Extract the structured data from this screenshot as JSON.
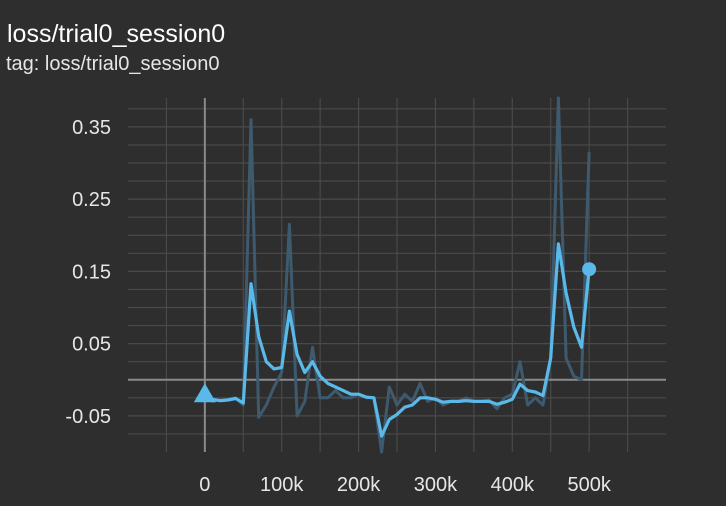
{
  "header": {
    "title": "loss/trial0_session0",
    "tag": "tag: loss/trial0_session0"
  },
  "colors": {
    "background": "#2e2e2e",
    "grid": "#4a4a4a",
    "axis": "#8a8a8a",
    "series": "#5ab9e8",
    "raw_series": "#3e5a6e"
  },
  "chart_data": {
    "type": "line",
    "title": "",
    "xlabel": "",
    "ylabel": "",
    "xlim": [
      -100000,
      600000
    ],
    "ylim": [
      -0.1,
      0.39
    ],
    "grid": true,
    "x_ticks": [
      {
        "value": 0,
        "label": "0"
      },
      {
        "value": 100000,
        "label": "100k"
      },
      {
        "value": 200000,
        "label": "200k"
      },
      {
        "value": 300000,
        "label": "300k"
      },
      {
        "value": 400000,
        "label": "400k"
      },
      {
        "value": 500000,
        "label": "500k"
      }
    ],
    "y_ticks": [
      {
        "value": 0.35,
        "label": "0.35"
      },
      {
        "value": 0.25,
        "label": "0.25"
      },
      {
        "value": 0.15,
        "label": "0.15"
      },
      {
        "value": 0.05,
        "label": "0.05"
      },
      {
        "value": -0.05,
        "label": "-0.05"
      }
    ],
    "series": [
      {
        "style": "raw",
        "x": [
          0,
          10000,
          20000,
          30000,
          40000,
          50000,
          60000,
          70000,
          80000,
          90000,
          100000,
          110000,
          120000,
          130000,
          140000,
          150000,
          160000,
          170000,
          180000,
          190000,
          200000,
          210000,
          220000,
          230000,
          240000,
          250000,
          260000,
          270000,
          280000,
          290000,
          300000,
          310000,
          320000,
          330000,
          340000,
          350000,
          360000,
          370000,
          380000,
          390000,
          400000,
          410000,
          420000,
          430000,
          440000,
          450000,
          460000,
          470000,
          480000,
          490000,
          500000
        ],
        "y": [
          -0.02,
          -0.03,
          -0.028,
          -0.027,
          -0.025,
          -0.035,
          0.36,
          -0.052,
          -0.035,
          -0.01,
          0.01,
          0.215,
          -0.05,
          -0.03,
          0.045,
          -0.025,
          -0.025,
          -0.015,
          -0.025,
          -0.025,
          -0.02,
          -0.025,
          -0.025,
          -0.1,
          -0.01,
          -0.035,
          -0.02,
          -0.03,
          -0.005,
          -0.03,
          -0.025,
          -0.035,
          -0.03,
          -0.03,
          -0.025,
          -0.03,
          -0.03,
          -0.028,
          -0.04,
          -0.025,
          -0.02,
          0.025,
          -0.035,
          -0.025,
          -0.035,
          0.03,
          0.39,
          0.03,
          0.005,
          0.0,
          0.315
        ]
      },
      {
        "style": "smoothed",
        "x": [
          0,
          10000,
          20000,
          30000,
          40000,
          50000,
          60000,
          70000,
          80000,
          90000,
          100000,
          110000,
          120000,
          130000,
          140000,
          150000,
          160000,
          170000,
          180000,
          190000,
          200000,
          210000,
          220000,
          230000,
          240000,
          250000,
          260000,
          270000,
          280000,
          290000,
          300000,
          310000,
          320000,
          330000,
          340000,
          350000,
          360000,
          370000,
          380000,
          390000,
          400000,
          410000,
          420000,
          430000,
          440000,
          450000,
          460000,
          470000,
          480000,
          490000,
          500000
        ],
        "y": [
          -0.02,
          -0.027,
          -0.029,
          -0.028,
          -0.026,
          -0.032,
          0.133,
          0.06,
          0.025,
          0.015,
          0.017,
          0.095,
          0.035,
          0.01,
          0.025,
          0.005,
          -0.005,
          -0.01,
          -0.015,
          -0.02,
          -0.02,
          -0.024,
          -0.025,
          -0.078,
          -0.055,
          -0.048,
          -0.038,
          -0.035,
          -0.025,
          -0.025,
          -0.027,
          -0.031,
          -0.03,
          -0.03,
          -0.029,
          -0.03,
          -0.03,
          -0.03,
          -0.034,
          -0.031,
          -0.027,
          -0.006,
          -0.015,
          -0.017,
          -0.022,
          0.03,
          0.188,
          0.12,
          0.073,
          0.045,
          0.153
        ]
      }
    ]
  }
}
